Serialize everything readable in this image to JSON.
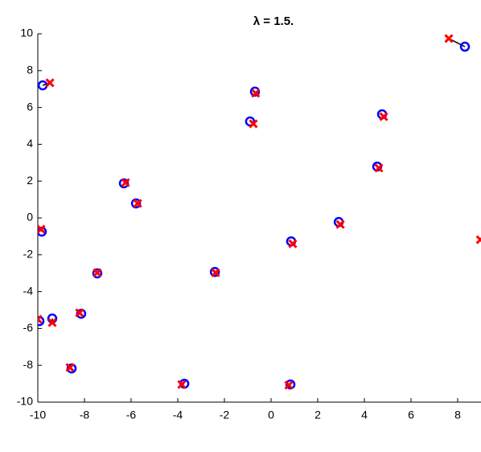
{
  "chart_data": {
    "type": "scatter",
    "title": "λ = 1.5.",
    "xlim": [
      -10,
      9
    ],
    "ylim": [
      -10,
      10
    ],
    "xticks": [
      -10,
      -8,
      -6,
      -4,
      -2,
      0,
      2,
      4,
      6,
      8
    ],
    "yticks": [
      -10,
      -8,
      -6,
      -4,
      -2,
      0,
      2,
      4,
      6,
      8,
      10
    ],
    "series": [
      {
        "color": "#0000ff",
        "marker": "o",
        "x": [
          -9.79,
          -9.83,
          -9.93,
          -9.38,
          -8.55,
          -8.14,
          -7.45,
          -6.31,
          -5.79,
          -3.72,
          -2.41,
          -0.9,
          -0.69,
          0.86,
          0.83,
          2.9,
          4.55,
          4.76,
          8.31
        ],
        "y": [
          7.2,
          -0.74,
          -5.6,
          -5.46,
          -8.17,
          -5.2,
          -3.01,
          1.88,
          0.79,
          -9.0,
          -2.93,
          5.24,
          6.86,
          -1.27,
          -9.04,
          -0.22,
          2.79,
          5.63,
          9.3
        ]
      },
      {
        "color": "#ff0000",
        "marker": "x",
        "x": [
          -9.48,
          -9.86,
          -10.0,
          -9.38,
          -8.62,
          -8.21,
          -7.45,
          -6.24,
          -5.72,
          -3.83,
          -2.38,
          -0.76,
          -0.66,
          0.93,
          0.76,
          2.97,
          4.62,
          4.83,
          7.62,
          8.97
        ],
        "y": [
          7.34,
          -0.61,
          -5.5,
          -5.68,
          -8.12,
          -5.15,
          -2.97,
          1.92,
          0.79,
          -9.04,
          -2.97,
          5.11,
          6.77,
          -1.4,
          -9.08,
          -0.35,
          2.71,
          5.5,
          9.74,
          -1.18
        ]
      }
    ]
  }
}
